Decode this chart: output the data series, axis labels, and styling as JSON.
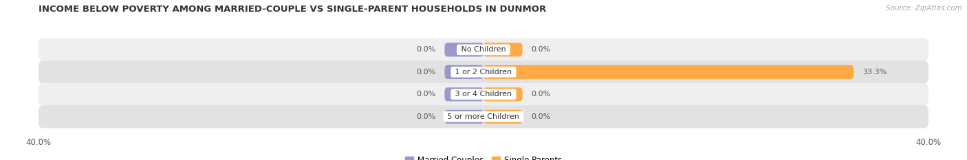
{
  "title": "INCOME BELOW POVERTY AMONG MARRIED-COUPLE VS SINGLE-PARENT HOUSEHOLDS IN DUNMOR",
  "source": "Source: ZipAtlas.com",
  "categories": [
    "No Children",
    "1 or 2 Children",
    "3 or 4 Children",
    "5 or more Children"
  ],
  "married_values": [
    0.0,
    0.0,
    0.0,
    0.0
  ],
  "single_values": [
    0.0,
    33.3,
    0.0,
    0.0
  ],
  "axis_max": 40.0,
  "married_color": "#9999cc",
  "single_color": "#ffaa44",
  "row_light_bg": "#efefef",
  "row_dark_bg": "#e2e2e2",
  "title_fontsize": 9.5,
  "label_fontsize": 8,
  "tick_fontsize": 8.5,
  "source_fontsize": 7.5,
  "legend_labels": [
    "Married Couples",
    "Single Parents"
  ]
}
